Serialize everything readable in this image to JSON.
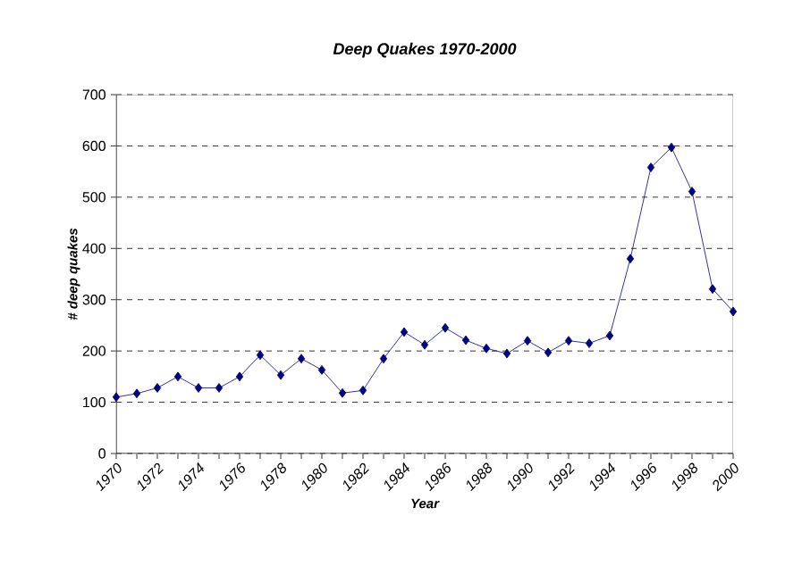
{
  "chart_data": {
    "type": "line",
    "title": "Deep Quakes 1970-2000",
    "xlabel": "Year",
    "ylabel": "# deep quakes",
    "x": [
      1970,
      1971,
      1972,
      1973,
      1974,
      1975,
      1976,
      1977,
      1978,
      1979,
      1980,
      1981,
      1982,
      1983,
      1984,
      1985,
      1986,
      1987,
      1988,
      1989,
      1990,
      1991,
      1992,
      1993,
      1994,
      1995,
      1996,
      1997,
      1998,
      1999,
      2000
    ],
    "series": [
      {
        "color": "#000080",
        "values": [
          110,
          117,
          128,
          150,
          128,
          128,
          150,
          192,
          153,
          185,
          163,
          118,
          123,
          185,
          237,
          212,
          245,
          221,
          205,
          195,
          220,
          197,
          220,
          215,
          230,
          380,
          558,
          597,
          511,
          321,
          277
        ]
      }
    ],
    "xlim": [
      1970,
      2000
    ],
    "xticks": [
      1970,
      {
        "value": 1971,
        "label": null
      },
      1972,
      {
        "value": 1973,
        "label": null
      },
      1974,
      {
        "value": 1975,
        "label": null
      },
      1976,
      {
        "value": 1977,
        "label": null
      },
      1978,
      {
        "value": 1979,
        "label": null
      },
      1980,
      {
        "value": 1981,
        "label": null
      },
      1982,
      {
        "value": 1983,
        "label": null
      },
      1984,
      {
        "value": 1985,
        "label": null
      },
      1986,
      {
        "value": 1987,
        "label": null
      },
      1988,
      {
        "value": 1989,
        "label": null
      },
      1990,
      {
        "value": 1991,
        "label": null
      },
      1992,
      {
        "value": 1993,
        "label": null
      },
      1994,
      {
        "value": 1995,
        "label": null
      },
      1996,
      {
        "value": 1997,
        "label": null
      },
      1998,
      {
        "value": 1999,
        "label": null
      },
      2000
    ],
    "ylim": [
      0,
      700
    ],
    "yticks": [
      0,
      100,
      200,
      300,
      400,
      500,
      600,
      700
    ],
    "grid": "y",
    "marker": "diamond",
    "line_style": "solid"
  }
}
